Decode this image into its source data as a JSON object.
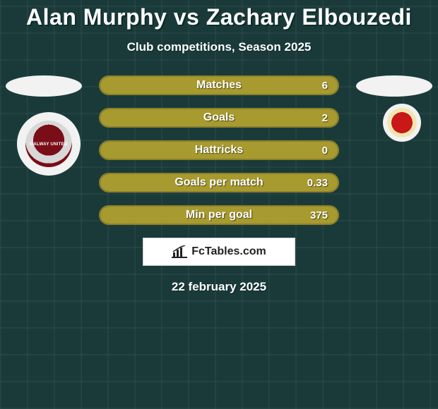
{
  "background_color": "#1a3a3a",
  "grid_color": "rgba(255,255,255,0.04)",
  "title": "Alan Murphy vs Zachary Elbouzedi",
  "title_fontsize": 32,
  "title_color": "#ffffff",
  "subtitle": "Club competitions, Season 2025",
  "subtitle_fontsize": 17,
  "players": {
    "left": {
      "name": "Alan Murphy",
      "club": "Galway United",
      "badge_primary": "#7a0e18",
      "badge_secondary": "#d8d8d8"
    },
    "right": {
      "name": "Zachary Elbouzedi",
      "club": "St Patrick's Athletic",
      "badge_primary": "#c81818",
      "badge_secondary": "#f2e6b0"
    }
  },
  "bar_fill_color": "#a79a2f",
  "bar_border_color": "#8c8028",
  "bar_track_color": "#2a4a48",
  "bar_text_color": "#ffffff",
  "stats": [
    {
      "label": "Matches",
      "value": "6",
      "fill_pct": 100
    },
    {
      "label": "Goals",
      "value": "2",
      "fill_pct": 100
    },
    {
      "label": "Hattricks",
      "value": "0",
      "fill_pct": 100
    },
    {
      "label": "Goals per match",
      "value": "0.33",
      "fill_pct": 100
    },
    {
      "label": "Min per goal",
      "value": "375",
      "fill_pct": 100
    }
  ],
  "brand": {
    "text": "FcTables.com",
    "icon": "barchart-icon"
  },
  "footer_date": "22 february 2025"
}
